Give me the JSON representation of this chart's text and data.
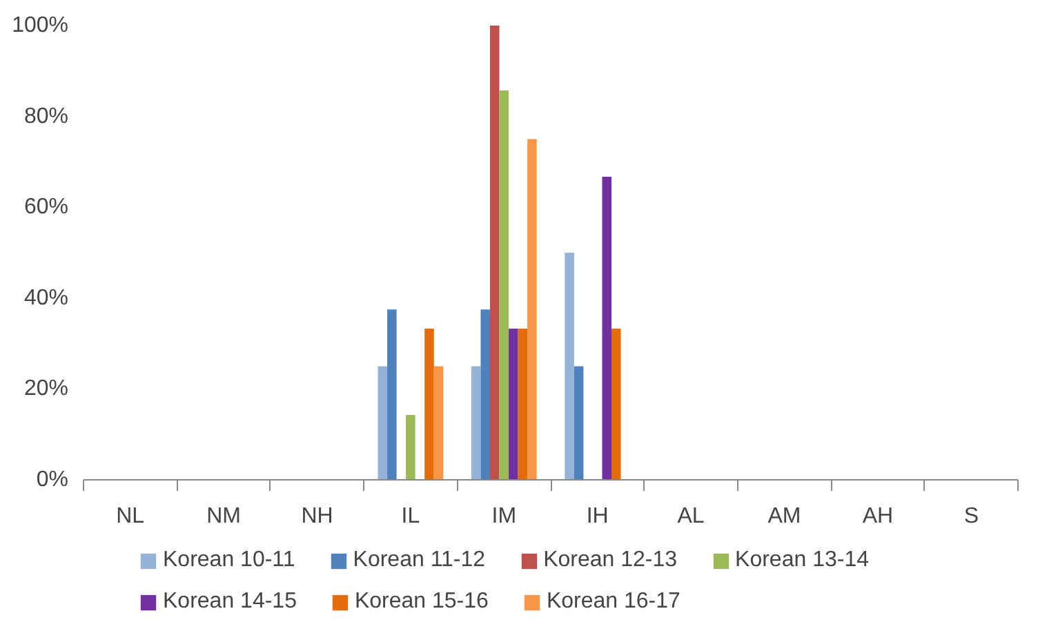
{
  "chart_data": {
    "type": "bar",
    "categories": [
      "NL",
      "NM",
      "NH",
      "IL",
      "IM",
      "IH",
      "AL",
      "AM",
      "AH",
      "S"
    ],
    "series": [
      {
        "name": "Korean 10-11",
        "color": "#95b3d7",
        "values": [
          0,
          0,
          0,
          25,
          25,
          50,
          0,
          0,
          0,
          0
        ]
      },
      {
        "name": "Korean 11-12",
        "color": "#4f81bd",
        "values": [
          0,
          0,
          0,
          37.5,
          37.5,
          25,
          0,
          0,
          0,
          0
        ]
      },
      {
        "name": "Korean 12-13",
        "color": "#c0504d",
        "values": [
          0,
          0,
          0,
          0,
          100,
          0,
          0,
          0,
          0,
          0
        ]
      },
      {
        "name": "Korean 13-14",
        "color": "#9bbb59",
        "values": [
          0,
          0,
          0,
          14.3,
          85.7,
          0,
          0,
          0,
          0,
          0
        ]
      },
      {
        "name": "Korean 14-15",
        "color": "#7030a0",
        "values": [
          0,
          0,
          0,
          0,
          33.3,
          66.7,
          0,
          0,
          0,
          0
        ]
      },
      {
        "name": "Korean 15-16",
        "color": "#e46c0a",
        "values": [
          0,
          0,
          0,
          33.3,
          33.3,
          33.3,
          0,
          0,
          0,
          0
        ]
      },
      {
        "name": "Korean 16-17",
        "color": "#f79646",
        "values": [
          0,
          0,
          0,
          25,
          75,
          0,
          0,
          0,
          0,
          0
        ]
      }
    ],
    "ylim": [
      0,
      100
    ],
    "yticks": [
      {
        "value": 0,
        "label": "0%"
      },
      {
        "value": 20,
        "label": "20%"
      },
      {
        "value": 40,
        "label": "40%"
      },
      {
        "value": 60,
        "label": "60%"
      },
      {
        "value": 80,
        "label": "80%"
      },
      {
        "value": 100,
        "label": "100%"
      }
    ],
    "grid": false,
    "legend": "bottom"
  }
}
